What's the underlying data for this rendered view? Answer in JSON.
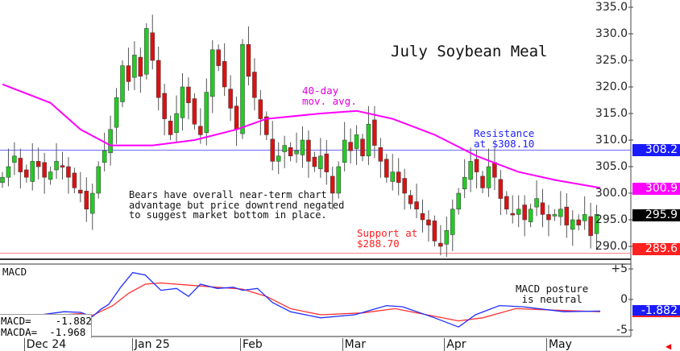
{
  "chart_data": {
    "type": "candlestick",
    "title": "July Soybean Meal",
    "ylim": [
      288,
      336
    ],
    "y_ticks": [
      "335.0",
      "330.0",
      "325.0",
      "320.0",
      "315.0",
      "310.0",
      "305.0",
      "300.0",
      "295.0",
      "290.0"
    ],
    "x_labels": [
      "Dec 24",
      "Jan 25",
      "Feb",
      "Mar",
      "Apr",
      "May"
    ],
    "x_label_index": [
      4,
      22,
      40,
      57,
      74,
      91
    ],
    "close": [
      303,
      305,
      307,
      304,
      303,
      306,
      305,
      303,
      304,
      306,
      305,
      303,
      301,
      300,
      297,
      300,
      305,
      308,
      312,
      318,
      324,
      321,
      326,
      322,
      331,
      325,
      318,
      314,
      311,
      315,
      320,
      317,
      313,
      311,
      319,
      327,
      324,
      320,
      316,
      312,
      328,
      322,
      318,
      314,
      311,
      306,
      307,
      309,
      307,
      308,
      310,
      306,
      305,
      307,
      304,
      300,
      305,
      310,
      308,
      311,
      307,
      313,
      309,
      306,
      303,
      304,
      302,
      300,
      298,
      297,
      295,
      294,
      291,
      290,
      293,
      297,
      300,
      303,
      306,
      304,
      301,
      305,
      303,
      299,
      297,
      296,
      297,
      295,
      297,
      299,
      296,
      295,
      296,
      297,
      294,
      295,
      294,
      296,
      292,
      296
    ],
    "ma40": [
      [
        0,
        320.5
      ],
      [
        8,
        317
      ],
      [
        13,
        312
      ],
      [
        18,
        309
      ],
      [
        25,
        309
      ],
      [
        32,
        310
      ],
      [
        39,
        312
      ],
      [
        44,
        314
      ],
      [
        53,
        315
      ],
      [
        59,
        315.5
      ],
      [
        65,
        314
      ],
      [
        72,
        311
      ],
      [
        79,
        307
      ],
      [
        86,
        304
      ],
      [
        92,
        302.5
      ],
      [
        99.6,
        301
      ]
    ],
    "ma40_label": "40-day\nmov. avg.",
    "resistance": {
      "value": 308.1,
      "label": "Resistance\nat $308.10"
    },
    "support": {
      "value": 288.7,
      "label": "Support at\n$288.70"
    },
    "commentary": "Bears have overall near-term chart\nadvantage but price downtrend negated\nto suggest market bottom in place.",
    "price_tags": [
      {
        "value": "308.2",
        "v": 308.2,
        "color": "#1a1aff"
      },
      {
        "value": "300.9",
        "v": 300.9,
        "color": "#ff00ff"
      },
      {
        "value": "295.9",
        "v": 295.9,
        "color": "#000000"
      },
      {
        "value": "289.6",
        "v": 289.6,
        "color": "#ff2020"
      }
    ],
    "macd": {
      "label": "MACD",
      "ylim": [
        -6.5,
        6.5
      ],
      "y_ticks": [
        "+5",
        "0",
        "-5"
      ],
      "macd_line": [
        [
          5.6,
          -2.6
        ],
        [
          10.3,
          -2
        ],
        [
          13,
          -2.1
        ],
        [
          15,
          -2.8
        ],
        [
          16.4,
          -1.6
        ],
        [
          17.7,
          -0.8
        ],
        [
          19.7,
          2
        ],
        [
          21.7,
          4.4
        ],
        [
          23.8,
          4
        ],
        [
          26.4,
          1.5
        ],
        [
          29,
          1.8
        ],
        [
          31,
          0.5
        ],
        [
          33,
          2.5
        ],
        [
          35.8,
          1.8
        ],
        [
          38.5,
          2
        ],
        [
          40,
          1.5
        ],
        [
          42.5,
          1.8
        ],
        [
          45,
          -0.5
        ],
        [
          48,
          -2
        ],
        [
          53,
          -3
        ],
        [
          58.7,
          -2.5
        ],
        [
          64,
          -1
        ],
        [
          66.7,
          -1.2
        ],
        [
          72,
          -3
        ],
        [
          76,
          -4.5
        ],
        [
          78.8,
          -2.5
        ],
        [
          82.8,
          -1
        ],
        [
          86.8,
          -1.2
        ],
        [
          93.5,
          -2
        ],
        [
          99.6,
          -1.9
        ]
      ],
      "signal_line": [
        [
          5.6,
          -2.8
        ],
        [
          13,
          -2.3
        ],
        [
          15,
          -2.6
        ],
        [
          18.4,
          -1
        ],
        [
          21,
          1
        ],
        [
          23.8,
          2.5
        ],
        [
          26.4,
          2.7
        ],
        [
          33,
          2.2
        ],
        [
          40,
          1.7
        ],
        [
          44,
          0.5
        ],
        [
          48,
          -1.5
        ],
        [
          53,
          -2.5
        ],
        [
          60,
          -2.2
        ],
        [
          65.4,
          -1.5
        ],
        [
          70.7,
          -2.5
        ],
        [
          76,
          -3.5
        ],
        [
          80,
          -3
        ],
        [
          85.5,
          -1.5
        ],
        [
          93.5,
          -1.8
        ],
        [
          99.6,
          -2
        ]
      ],
      "macd_value_text": "MACD=    -1.882",
      "macda_value_text": "MACDA=  -1.968",
      "tag": "-1.882",
      "annotation": "MACD posture\n is neutral"
    }
  }
}
